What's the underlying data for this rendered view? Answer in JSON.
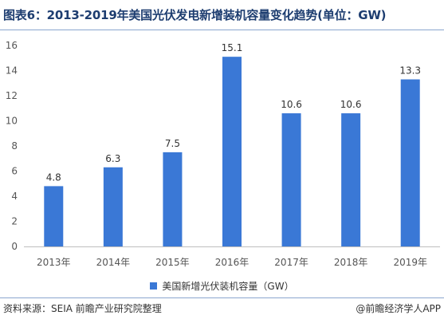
{
  "title": "图表6：2013-2019年美国光伏发电新增装机容量变化趋势(单位：GW)",
  "footer": {
    "source": "资料来源：SEIA 前瞻产业研究院整理",
    "credit": "@前瞻经济学人APP"
  },
  "colors": {
    "bar": "#3a78d6",
    "title": "#1d3d70"
  },
  "chart_data": {
    "type": "bar",
    "categories": [
      "2013年",
      "2014年",
      "2015年",
      "2016年",
      "2017年",
      "2018年",
      "2019年"
    ],
    "series": [
      {
        "name": "美国新增光伏装机容量（GW）",
        "values": [
          4.8,
          6.3,
          7.5,
          15.1,
          10.6,
          10.6,
          13.3
        ]
      }
    ],
    "data_labels": [
      "4.8",
      "6.3",
      "7.5",
      "15.1",
      "10.6",
      "10.6",
      "13.3"
    ],
    "ylim": [
      0,
      16
    ],
    "yticks": [
      0,
      2,
      4,
      6,
      8,
      10,
      12,
      14,
      16
    ],
    "grid": false,
    "legend_position": "bottom"
  }
}
